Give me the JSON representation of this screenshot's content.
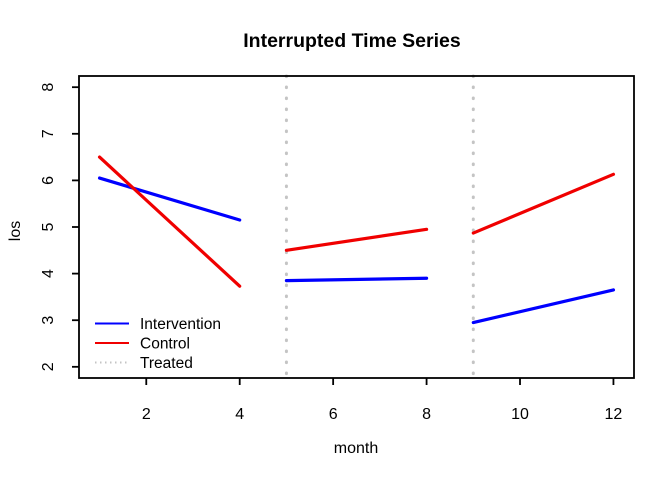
{
  "chart_data": {
    "type": "line",
    "title": "Interrupted Time Series",
    "xlabel": "month",
    "ylabel": "los",
    "xlim": [
      0.56,
      12.44
    ],
    "ylim": [
      1.76,
      8.24
    ],
    "x_ticks": [
      2,
      4,
      6,
      8,
      10,
      12
    ],
    "y_ticks": [
      2,
      3,
      4,
      5,
      6,
      7,
      8
    ],
    "grid": false,
    "frame": true,
    "series": [
      {
        "name": "Intervention",
        "color": "#0000FF",
        "style": "solid",
        "line_width": 3.2,
        "segments": [
          {
            "x": [
              1,
              4
            ],
            "y": [
              6.05,
              5.15
            ]
          },
          {
            "x": [
              5,
              8
            ],
            "y": [
              3.85,
              3.9
            ]
          },
          {
            "x": [
              9,
              12
            ],
            "y": [
              2.95,
              3.65
            ]
          }
        ]
      },
      {
        "name": "Control",
        "color": "#F00000",
        "style": "solid",
        "line_width": 3.2,
        "segments": [
          {
            "x": [
              1,
              4
            ],
            "y": [
              6.5,
              3.73
            ]
          },
          {
            "x": [
              5,
              8
            ],
            "y": [
              4.5,
              4.95
            ]
          },
          {
            "x": [
              9,
              12
            ],
            "y": [
              4.87,
              6.13
            ]
          }
        ]
      },
      {
        "name": "Treated",
        "color": "#C4C4C4",
        "style": "dotted",
        "line_width": 3,
        "vlines_x": [
          5,
          9
        ]
      }
    ],
    "legend": {
      "position": "bottom-left",
      "border": false,
      "entries": [
        {
          "label": "Intervention",
          "color": "#0000FF",
          "style": "solid"
        },
        {
          "label": "Control",
          "color": "#F00000",
          "style": "solid"
        },
        {
          "label": "Treated",
          "color": "#C4C4C4",
          "style": "dotted"
        }
      ]
    }
  }
}
